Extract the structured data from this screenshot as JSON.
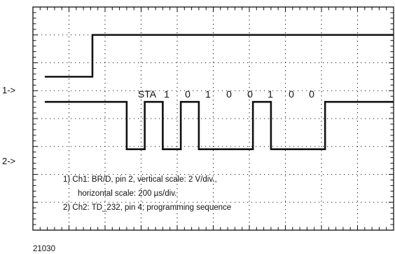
{
  "figure_id": "21030",
  "channels": [
    {
      "marker": "1->"
    },
    {
      "marker": "2->"
    }
  ],
  "bit_labels": [
    "STA",
    "1",
    "0",
    "1",
    "0",
    "0",
    "1",
    "0",
    "0"
  ],
  "notes": [
    "1) Ch1: BR/D, pin 2, vertical scale: 2 V/div.,",
    "horizontal scale: 200 µs/div.",
    "2) Ch2: TD_232, pin 4; programming sequence"
  ],
  "chart_data": {
    "type": "line",
    "grid": true,
    "x_divisions": 10,
    "y_divisions": 8,
    "series": [
      {
        "values_x": [
          0,
          1.65,
          1.65,
          10
        ],
        "values_y": [
          5.5,
          5.5,
          7.0,
          7.0
        ]
      },
      {
        "values_x": [
          0,
          2.6,
          2.6,
          3.1,
          3.1,
          3.6,
          3.6,
          4.1,
          4.1,
          4.6,
          4.6,
          6.1,
          6.1,
          6.6,
          6.6,
          8.1,
          8.1,
          10
        ],
        "values_y": [
          4.6,
          4.6,
          2.9,
          2.9,
          4.6,
          4.6,
          2.9,
          2.9,
          4.6,
          4.6,
          2.9,
          2.9,
          4.6,
          4.6,
          2.9,
          2.9,
          4.6,
          4.6
        ]
      }
    ]
  },
  "colors": {
    "trace": "#111111",
    "grid": "#222222",
    "frame": "#111111"
  }
}
